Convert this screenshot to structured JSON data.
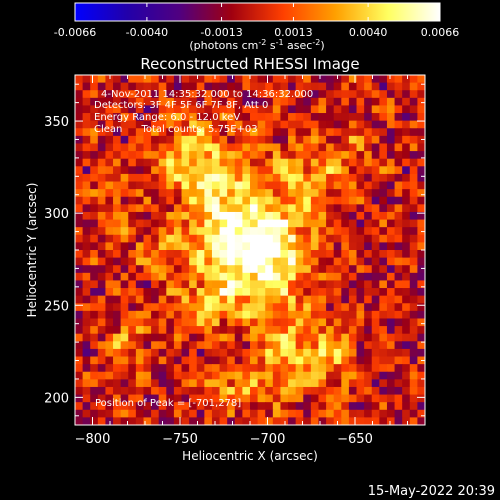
{
  "colorbar": {
    "ticks": [
      "-0.0066",
      "-0.0040",
      "-0.0013",
      "0.0013",
      "0.0040",
      "0.0066"
    ],
    "tick_values": [
      -0.0066,
      -0.004,
      -0.0013,
      0.0013,
      0.004,
      0.0066
    ],
    "range": [
      -0.0066,
      0.0066
    ],
    "units_parts": [
      "(photons cm",
      "-2",
      " s",
      "-1",
      " asec",
      "-2",
      ")"
    ],
    "stops": [
      "#0000ff",
      "#2200aa",
      "#500080",
      "#a00010",
      "#ff4000",
      "#ffa000",
      "#ffff60",
      "#ffffff"
    ]
  },
  "chart_data": {
    "type": "heatmap",
    "title": "Reconstructed RHESSI Image",
    "xlabel": "Heliocentric X (arcsec)",
    "ylabel": "Heliocentric Y (arcsec)",
    "xlim": [
      -810,
      -610
    ],
    "ylim": [
      185,
      375
    ],
    "x_ticks": [
      -800,
      -750,
      -700,
      -650
    ],
    "x_tick_labels": [
      "−800",
      "−750",
      "−700",
      "−650"
    ],
    "y_ticks": [
      200,
      250,
      300,
      350
    ],
    "y_tick_labels": [
      "200",
      "250",
      "300",
      "350"
    ],
    "annotations": [
      "4-Nov-2011 14:35:32.000 to 14:36:32.000",
      "Detectors: 3F 4F 5F 6F 7F 8F, Att 0",
      "Energy Range: 6.0 - 12.0 keV",
      "Clean      Total counts: 5.75E+03"
    ],
    "peak_label": "Position of Peak = [-701,278]",
    "peak_position": [
      -701,
      278
    ],
    "sources": [
      {
        "x": -701,
        "y": 278,
        "amp": 0.0066,
        "sx": 18,
        "sy": 18
      },
      {
        "x": -725,
        "y": 300,
        "amp": 0.0042,
        "sx": 14,
        "sy": 22
      },
      {
        "x": -745,
        "y": 330,
        "amp": 0.0035,
        "sx": 14,
        "sy": 16
      },
      {
        "x": -680,
        "y": 320,
        "amp": 0.003,
        "sx": 16,
        "sy": 14
      },
      {
        "x": -735,
        "y": 250,
        "amp": 0.0028,
        "sx": 14,
        "sy": 12
      },
      {
        "x": -690,
        "y": 225,
        "amp": 0.0033,
        "sx": 12,
        "sy": 16
      },
      {
        "x": -665,
        "y": 220,
        "amp": 0.003,
        "sx": 10,
        "sy": 14
      },
      {
        "x": -720,
        "y": 205,
        "amp": 0.0026,
        "sx": 14,
        "sy": 8
      },
      {
        "x": -780,
        "y": 230,
        "amp": 0.0022,
        "sx": 10,
        "sy": 10
      },
      {
        "x": -790,
        "y": 300,
        "amp": 0.002,
        "sx": 8,
        "sy": 12
      },
      {
        "x": -760,
        "y": 280,
        "amp": 0.0024,
        "sx": 10,
        "sy": 10
      },
      {
        "x": -650,
        "y": 335,
        "amp": 0.0015,
        "sx": 10,
        "sy": 10
      }
    ]
  },
  "footer": {
    "date": "15-May-2022 20:39"
  }
}
